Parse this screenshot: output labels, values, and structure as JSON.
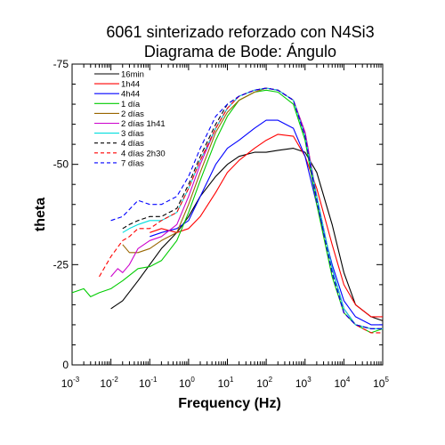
{
  "chart_data": {
    "type": "line",
    "title": "6061 sinterizado reforzado con N4Si3",
    "subtitle": "Diagrama de Bode: Ángulo",
    "xlabel": "Frequency (Hz)",
    "ylabel": "theta",
    "x_scale": "log",
    "xlim": [
      0.001,
      100000
    ],
    "ylim": [
      0,
      -75
    ],
    "y_inverted": true,
    "x_ticks": [
      {
        "base": "10",
        "exp": "-3",
        "value": 0.001
      },
      {
        "base": "10",
        "exp": "-2",
        "value": 0.01
      },
      {
        "base": "10",
        "exp": "-1",
        "value": 0.1
      },
      {
        "base": "10",
        "exp": "0",
        "value": 1
      },
      {
        "base": "10",
        "exp": "1",
        "value": 10
      },
      {
        "base": "10",
        "exp": "2",
        "value": 100
      },
      {
        "base": "10",
        "exp": "3",
        "value": 1000
      },
      {
        "base": "10",
        "exp": "4",
        "value": 10000
      },
      {
        "base": "10",
        "exp": "5",
        "value": 100000
      }
    ],
    "y_ticks": [
      {
        "label": "-75",
        "value": -75
      },
      {
        "label": "-50",
        "value": -50
      },
      {
        "label": "-25",
        "value": -25
      },
      {
        "label": "0",
        "value": 0
      }
    ],
    "grid": false,
    "legend_position": "top-left",
    "series": [
      {
        "name": "16min",
        "color": "#000000",
        "dash": "solid",
        "x": [
          0.01,
          0.02,
          0.05,
          0.1,
          0.2,
          0.5,
          1,
          2,
          5,
          10,
          20,
          50,
          100,
          200,
          500,
          1000,
          2000,
          5000,
          10000,
          20000,
          50000,
          100000
        ],
        "y": [
          -14,
          -16,
          -21,
          -25,
          -29,
          -33,
          -37,
          -42,
          -47,
          -50,
          -52,
          -53,
          -53,
          -53.5,
          -54,
          -53,
          -48,
          -35,
          -23,
          -15,
          -12,
          -11
        ]
      },
      {
        "name": "1h44",
        "color": "#ff0000",
        "dash": "solid",
        "x": [
          0.1,
          0.2,
          0.5,
          1,
          2,
          5,
          10,
          20,
          50,
          100,
          200,
          500,
          1000,
          2000,
          5000,
          10000,
          20000,
          50000,
          100000
        ],
        "y": [
          -33,
          -34,
          -33,
          -34,
          -37,
          -43,
          -48,
          -51,
          -54,
          -56,
          -57.5,
          -57,
          -52,
          -44,
          -30,
          -20,
          -15,
          -12,
          -12
        ]
      },
      {
        "name": "4h44",
        "color": "#0000ff",
        "dash": "solid",
        "x": [
          0.1,
          0.2,
          0.5,
          1,
          2,
          5,
          10,
          20,
          50,
          100,
          200,
          500,
          1000,
          2000,
          5000,
          10000,
          20000,
          50000,
          100000
        ],
        "y": [
          -32,
          -33,
          -34,
          -36,
          -42,
          -50,
          -54,
          -56,
          -59,
          -61,
          -61,
          -59,
          -52,
          -40,
          -25,
          -16,
          -12,
          -10,
          -10
        ]
      },
      {
        "name": "1 día",
        "color": "#00cc00",
        "dash": "solid",
        "x": [
          0.001,
          0.002,
          0.003,
          0.005,
          0.01,
          0.02,
          0.05,
          0.1,
          0.2,
          0.5,
          1,
          2,
          5,
          10,
          20,
          50,
          100,
          200,
          500,
          1000,
          2000,
          5000,
          10000,
          20000,
          50000,
          100000
        ],
        "y": [
          -18,
          -19,
          -17,
          -18,
          -19,
          -21,
          -24,
          -24.5,
          -26,
          -31,
          -38,
          -46,
          -56,
          -62,
          -66,
          -68,
          -68.5,
          -68,
          -65,
          -56,
          -40,
          -22,
          -13,
          -10,
          -8,
          -9
        ]
      },
      {
        "name": "2 días",
        "color": "#996600",
        "dash": "solid",
        "x": [
          0.02,
          0.03,
          0.05,
          0.1,
          0.2,
          0.5,
          1,
          2,
          5,
          10,
          20,
          50,
          100,
          200,
          500,
          1000,
          2000,
          5000,
          10000,
          20000,
          50000,
          100000
        ],
        "y": [
          -30,
          -28,
          -28,
          -29,
          -31,
          -33,
          -40,
          -48,
          -58,
          -63,
          -66,
          -68,
          -69,
          -68.5,
          -66,
          -58,
          -42,
          -24,
          -14,
          -10,
          -9,
          -9
        ]
      },
      {
        "name": "2 días 1h41",
        "color": "#cc00cc",
        "dash": "solid",
        "x": [
          0.01,
          0.015,
          0.02,
          0.03,
          0.05,
          0.1,
          0.2,
          0.5,
          1,
          2,
          5,
          10,
          20,
          50,
          100,
          200,
          500,
          1000,
          2000,
          5000,
          10000,
          20000,
          50000,
          100000
        ],
        "y": [
          -22,
          -24,
          -23,
          -25,
          -29,
          -31,
          -32,
          -35,
          -42,
          -50,
          -59,
          -64,
          -67,
          -68.5,
          -69,
          -68.5,
          -66,
          -58,
          -42,
          -24,
          -14,
          -10,
          -9,
          -9
        ]
      },
      {
        "name": "3 días",
        "color": "#00dddd",
        "dash": "solid",
        "x": [
          0.02,
          0.03,
          0.05,
          0.1,
          0.2,
          0.5,
          1,
          2,
          5,
          10,
          20,
          50,
          100,
          200,
          500,
          1000,
          2000,
          5000,
          10000,
          20000,
          50000,
          100000
        ],
        "y": [
          -33,
          -34,
          -35,
          -36,
          -36,
          -38,
          -44,
          -51,
          -59,
          -64,
          -67,
          -68.5,
          -69,
          -68.5,
          -66,
          -57,
          -42,
          -24,
          -14,
          -10,
          -9,
          -9
        ]
      },
      {
        "name": "4 días",
        "color": "#000000",
        "dash": "dashed",
        "x": [
          0.02,
          0.03,
          0.05,
          0.1,
          0.2,
          0.5,
          1,
          2,
          5,
          10,
          20,
          50,
          100,
          200,
          500,
          1000,
          2000,
          5000,
          10000,
          20000,
          50000,
          100000
        ],
        "y": [
          -34,
          -35,
          -36,
          -37,
          -37,
          -39,
          -45,
          -52,
          -60,
          -65,
          -67,
          -68.5,
          -69,
          -68.5,
          -66,
          -57,
          -41,
          -23,
          -13,
          -10,
          -9,
          -9
        ]
      },
      {
        "name": "4 días 2h30",
        "color": "#ff0000",
        "dash": "dashed",
        "x": [
          0.005,
          0.01,
          0.02,
          0.03,
          0.05,
          0.1,
          0.2,
          0.5,
          1,
          2,
          5,
          10,
          20,
          50,
          100,
          200,
          500,
          1000,
          2000,
          5000,
          10000,
          20000,
          50000,
          100000
        ],
        "y": [
          -22,
          -27,
          -31,
          -32,
          -34,
          -34,
          -36,
          -38,
          -44,
          -51,
          -59,
          -64,
          -67,
          -68.5,
          -69,
          -68.5,
          -66,
          -57,
          -41,
          -23,
          -13,
          -10,
          -8,
          -8
        ]
      },
      {
        "name": "7 días",
        "color": "#0000ff",
        "dash": "dashed",
        "x": [
          0.01,
          0.02,
          0.05,
          0.1,
          0.2,
          0.5,
          1,
          2,
          5,
          10,
          20,
          50,
          100,
          200,
          500,
          1000,
          2000,
          5000,
          10000,
          20000,
          50000,
          100000
        ],
        "y": [
          -36,
          -37,
          -41,
          -40,
          -40,
          -42,
          -47,
          -54,
          -62,
          -65,
          -67,
          -68.5,
          -69,
          -68.5,
          -66,
          -57,
          -41,
          -23,
          -13,
          -10,
          -9,
          -9
        ]
      }
    ]
  }
}
